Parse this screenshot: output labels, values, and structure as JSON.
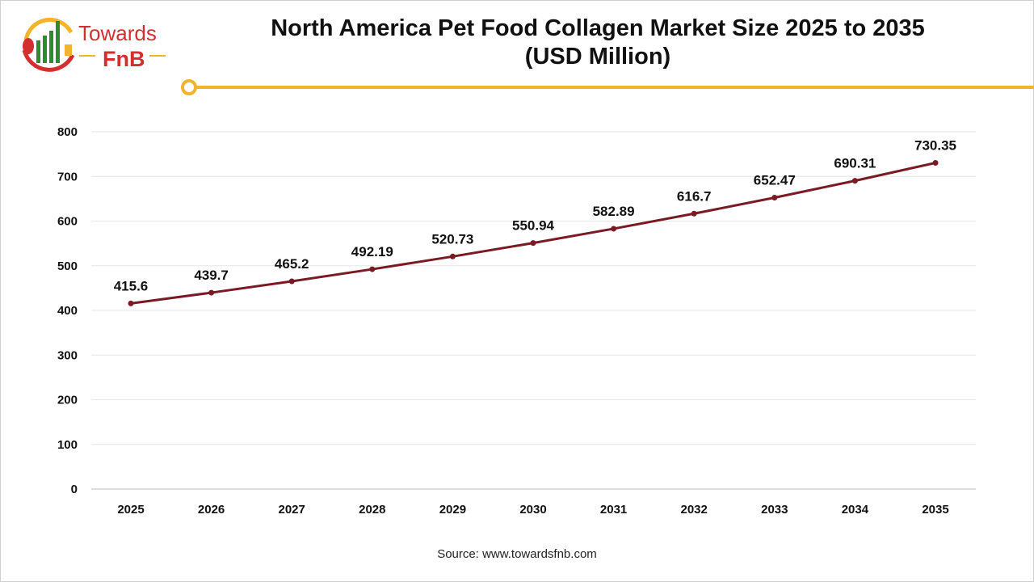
{
  "brand": {
    "name_top": "Towards",
    "name_bottom": "FnB"
  },
  "colors": {
    "line": "#7a1a24",
    "accent": "#f2b42c",
    "brand_red": "#d32f2f",
    "brand_green": "#2e8b2e",
    "grid": "#e6e6e6"
  },
  "source": "Source: www.towardsfnb.com",
  "chart_data": {
    "type": "line",
    "title": "North America Pet Food Collagen Market Size 2025 to 2035",
    "subtitle": "(USD Million)",
    "categories": [
      "2025",
      "2026",
      "2027",
      "2028",
      "2029",
      "2030",
      "2031",
      "2032",
      "2033",
      "2034",
      "2035"
    ],
    "values": [
      415.6,
      439.7,
      465.2,
      492.19,
      520.73,
      550.94,
      582.89,
      616.7,
      652.47,
      690.31,
      730.35
    ],
    "labels": [
      "415.6",
      "439.7",
      "465.2",
      "492.19",
      "520.73",
      "550.94",
      "582.89",
      "616.7",
      "652.47",
      "690.31",
      "730.35"
    ],
    "ylim": [
      0,
      800
    ],
    "yticks": [
      "0",
      "100",
      "200",
      "300",
      "400",
      "500",
      "600",
      "700",
      "800"
    ],
    "grid": true,
    "legend": "none"
  }
}
